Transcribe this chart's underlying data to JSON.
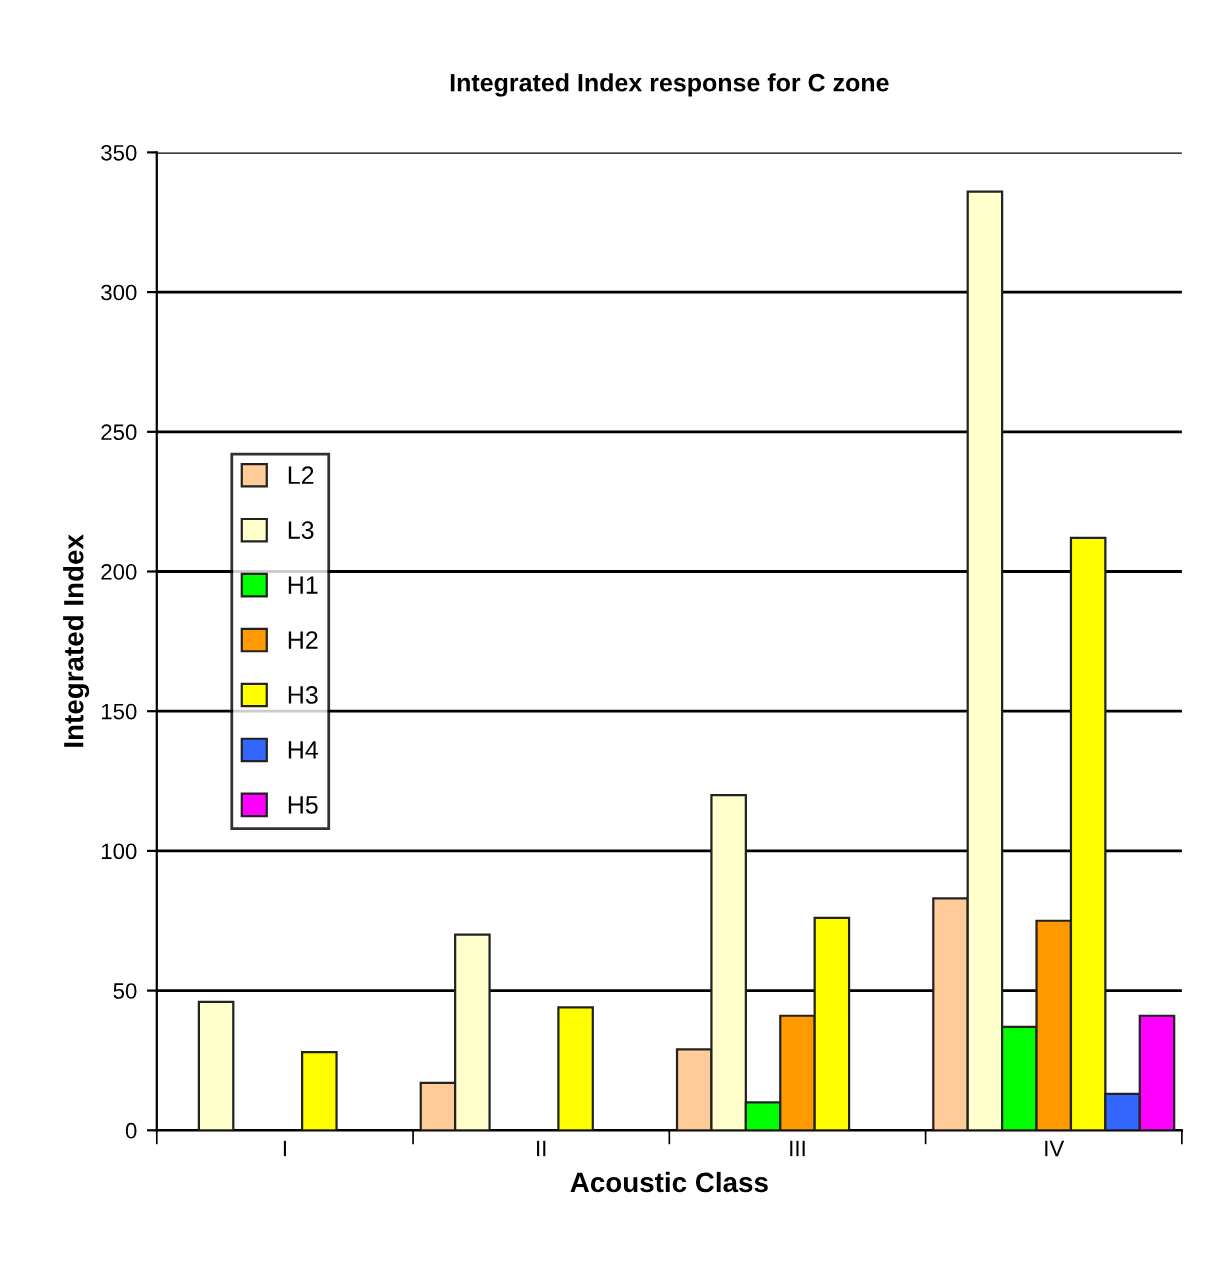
{
  "chart_data": {
    "type": "bar",
    "title": "Integrated Index response for C zone",
    "xlabel": "Acoustic Class",
    "ylabel": "Integrated Index",
    "categories": [
      "I",
      "II",
      "III",
      "IV"
    ],
    "series": [
      {
        "name": "L2",
        "color": "#ffcc99",
        "values": [
          null,
          17,
          29,
          83
        ]
      },
      {
        "name": "L3",
        "color": "#ffffcc",
        "values": [
          46,
          70,
          120,
          336
        ]
      },
      {
        "name": "H1",
        "color": "#00ff00",
        "values": [
          null,
          null,
          10,
          37
        ]
      },
      {
        "name": "H2",
        "color": "#ff9900",
        "values": [
          null,
          null,
          41,
          75
        ]
      },
      {
        "name": "H3",
        "color": "#ffff00",
        "values": [
          28,
          44,
          76,
          212
        ]
      },
      {
        "name": "H4",
        "color": "#3366ff",
        "values": [
          null,
          null,
          null,
          13
        ]
      },
      {
        "name": "H5",
        "color": "#ff00ff",
        "values": [
          null,
          null,
          null,
          41
        ]
      }
    ],
    "ylim": [
      0,
      350
    ],
    "yticks": [
      0,
      50,
      100,
      150,
      200,
      250,
      300,
      350
    ],
    "grid": "y",
    "legend": "left"
  }
}
